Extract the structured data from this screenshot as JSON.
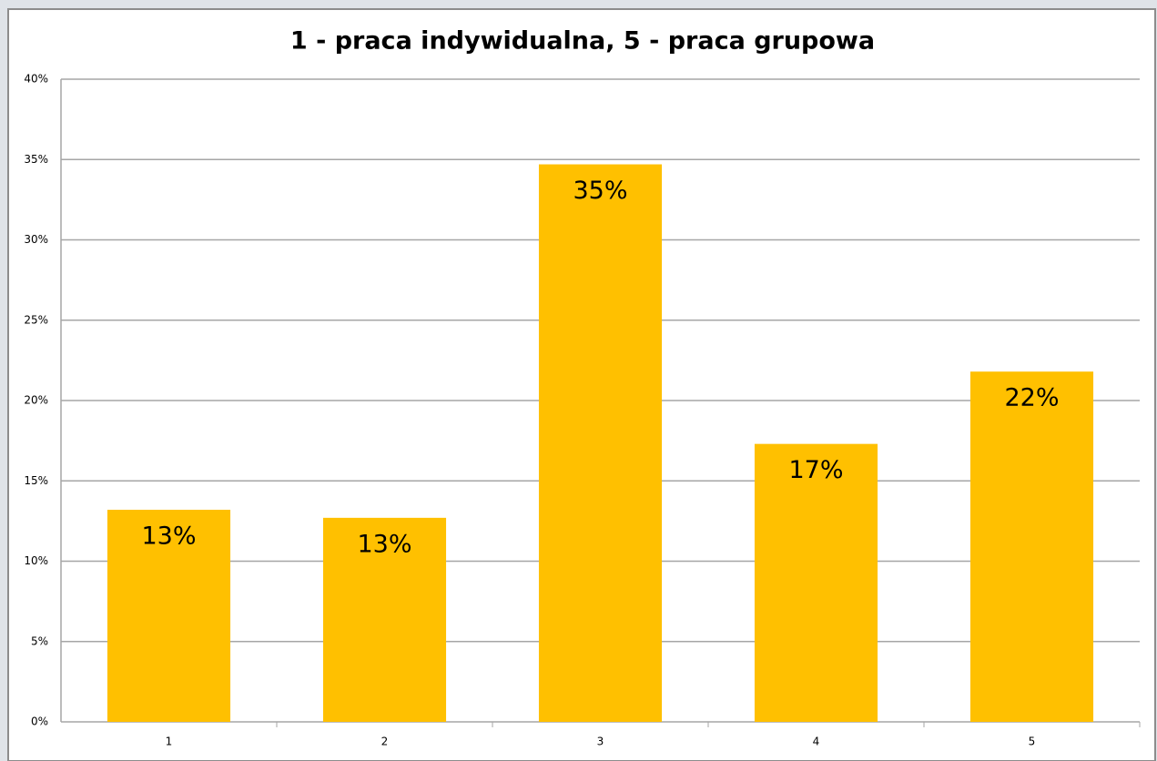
{
  "chart_data": {
    "type": "bar",
    "title": "1 - praca indywidualna, 5 - praca grupowa",
    "categories": [
      "1",
      "2",
      "3",
      "4",
      "5"
    ],
    "values": [
      13.2,
      12.7,
      34.7,
      17.3,
      21.8
    ],
    "value_labels": [
      "13%",
      "13%",
      "35%",
      "17%",
      "22%"
    ],
    "color": "#ffc000",
    "ylim": [
      0,
      40
    ],
    "yticks": [
      {
        "value": 0,
        "label": "0%"
      },
      {
        "value": 5,
        "label": "5%"
      },
      {
        "value": 10,
        "label": "10%"
      },
      {
        "value": 15,
        "label": "15%"
      },
      {
        "value": 20,
        "label": "20%"
      },
      {
        "value": 25,
        "label": "25%"
      },
      {
        "value": 30,
        "label": "30%"
      },
      {
        "value": 35,
        "label": "35%"
      },
      {
        "value": 40,
        "label": "40%"
      }
    ],
    "grid": true
  }
}
